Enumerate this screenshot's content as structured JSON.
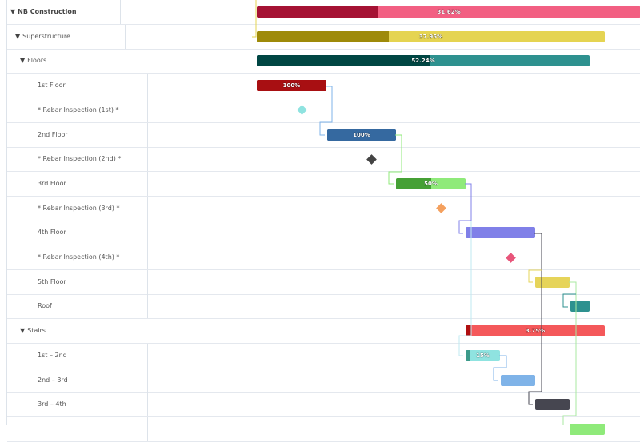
{
  "tasks": [
    {
      "name": "NB Construction",
      "level": 0,
      "toggle": "▼",
      "bold": true,
      "type": "bar",
      "start": 320,
      "end": 800,
      "progress": 31.62,
      "label": "31.62%",
      "dark": "#a51234",
      "light": "#f25f82"
    },
    {
      "name": "Superstructure",
      "level": 1,
      "toggle": "▼",
      "type": "bar",
      "start": 320,
      "end": 755,
      "progress": 37.95,
      "label": "37.95%",
      "dark": "#9e8a0a",
      "light": "#e5d452"
    },
    {
      "name": "Floors",
      "level": 2,
      "toggle": "▼",
      "type": "bar",
      "start": 320,
      "end": 736,
      "progress": 52.24,
      "label": "52.24%",
      "dark": "#004643",
      "light": "#2e918f"
    },
    {
      "name": "1st Floor",
      "level": 3,
      "type": "bar",
      "start": 320,
      "end": 407,
      "progress": 100,
      "label": "100%",
      "dark": "#a80f12",
      "light": "#a80f12"
    },
    {
      "name": "* Rebar Inspection (1st) *",
      "level": 3,
      "type": "milestone",
      "at": 376,
      "color": "#8fe3e0"
    },
    {
      "name": "2nd Floor",
      "level": 3,
      "type": "bar",
      "start": 408,
      "end": 494,
      "progress": 100,
      "label": "100%",
      "dark": "#3569a0",
      "light": "#3569a0"
    },
    {
      "name": "* Rebar Inspection (2nd) *",
      "level": 3,
      "type": "milestone",
      "at": 463,
      "color": "#444444"
    },
    {
      "name": "3rd Floor",
      "level": 3,
      "type": "bar",
      "start": 494,
      "end": 581,
      "progress": 50,
      "label": "50%",
      "dark": "#45a035",
      "light": "#8fea7a"
    },
    {
      "name": "* Rebar Inspection (3rd) *",
      "level": 3,
      "type": "milestone",
      "at": 550,
      "color": "#f4a05e"
    },
    {
      "name": "4th Floor",
      "level": 3,
      "type": "bar",
      "start": 581,
      "end": 668,
      "progress": 0,
      "label": "",
      "dark": "#8080e8",
      "light": "#8080e8"
    },
    {
      "name": "* Rebar Inspection (4th) *",
      "level": 3,
      "type": "milestone",
      "at": 637,
      "color": "#e8557a"
    },
    {
      "name": "5th Floor",
      "level": 3,
      "type": "bar",
      "start": 668,
      "end": 711,
      "progress": 0,
      "label": "",
      "dark": "#e6d45a",
      "light": "#e6d45a"
    },
    {
      "name": "Roof",
      "level": 3,
      "type": "bar",
      "start": 712,
      "end": 736,
      "progress": 0,
      "label": "",
      "dark": "#2e918f",
      "light": "#2e918f"
    },
    {
      "name": "Stairs",
      "level": 2,
      "toggle": "▼",
      "type": "bar",
      "start": 581,
      "end": 755,
      "progress": 3.75,
      "label": "3.75%",
      "dark": "#b00f10",
      "light": "#f4585a"
    },
    {
      "name": "1st – 2nd",
      "level": 3,
      "type": "bar",
      "start": 581,
      "end": 624,
      "progress": 15,
      "label": "15%",
      "dark": "#3c9a8a",
      "light": "#8fe3e0"
    },
    {
      "name": "2nd – 3rd",
      "level": 3,
      "type": "bar",
      "start": 625,
      "end": 668,
      "progress": 0,
      "label": "",
      "dark": "#7fb3e8",
      "light": "#7fb3e8"
    },
    {
      "name": "3rd – 4th",
      "level": 3,
      "type": "bar",
      "start": 668,
      "end": 711,
      "progress": 0,
      "label": "",
      "dark": "#464650",
      "light": "#464650"
    },
    {
      "name": "",
      "level": 3,
      "type": "bar",
      "start": 711,
      "end": 755,
      "progress": 0,
      "label": "",
      "dark": "#8fea7a",
      "light": "#8fea7a"
    }
  ]
}
